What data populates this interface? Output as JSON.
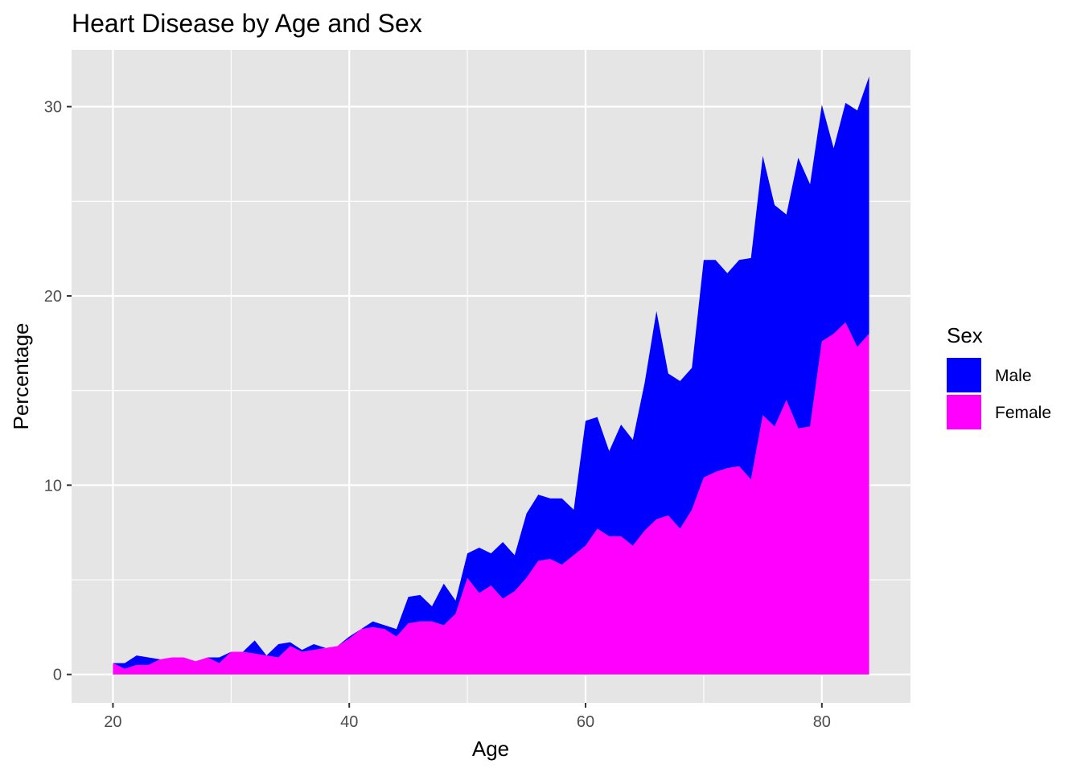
{
  "chart_data": {
    "type": "area",
    "stacked": true,
    "title": "Heart Disease by Age and Sex",
    "xlabel": "Age",
    "ylabel": "Percentage",
    "xlim": [
      16.5,
      87.5
    ],
    "ylim": [
      -1.5,
      33
    ],
    "x_ticks": [
      20,
      40,
      60,
      80
    ],
    "y_ticks": [
      0,
      10,
      20,
      30
    ],
    "grid": true,
    "panel_background": "#e5e5e5",
    "legend": {
      "title": "Sex",
      "position": "right",
      "entries": [
        {
          "label": "Male",
          "color": "#0000ff"
        },
        {
          "label": "Female",
          "color": "#ff00ff"
        }
      ]
    },
    "x": [
      20,
      21,
      22,
      23,
      24,
      25,
      26,
      27,
      28,
      29,
      30,
      31,
      32,
      33,
      34,
      35,
      36,
      37,
      38,
      39,
      40,
      41,
      42,
      43,
      44,
      45,
      46,
      47,
      48,
      49,
      50,
      51,
      52,
      53,
      54,
      55,
      56,
      57,
      58,
      59,
      60,
      61,
      62,
      63,
      64,
      65,
      66,
      67,
      68,
      69,
      70,
      71,
      72,
      73,
      74,
      75,
      76,
      77,
      78,
      79,
      80,
      81,
      82,
      83,
      84
    ],
    "series": [
      {
        "name": "Female",
        "color": "#ff00ff",
        "values": [
          0.6,
          0.3,
          0.5,
          0.5,
          0.8,
          0.9,
          0.9,
          0.7,
          0.9,
          0.6,
          1.2,
          1.2,
          1.1,
          1.0,
          0.9,
          1.5,
          1.2,
          1.3,
          1.4,
          1.5,
          1.9,
          2.4,
          2.5,
          2.4,
          2.0,
          2.7,
          2.8,
          2.8,
          2.6,
          3.2,
          5.1,
          4.3,
          4.7,
          4.0,
          4.4,
          5.1,
          6.0,
          6.1,
          5.8,
          6.3,
          6.8,
          7.7,
          7.3,
          7.3,
          6.8,
          7.6,
          8.2,
          8.4,
          7.7,
          8.7,
          10.4,
          10.7,
          10.9,
          11.0,
          10.3,
          13.7,
          13.1,
          14.5,
          13.0,
          13.1,
          17.6,
          18.0,
          18.6,
          17.3,
          18.0
        ]
      },
      {
        "name": "Male",
        "color": "#0000ff",
        "values": [
          0.0,
          0.3,
          0.5,
          0.4,
          0.0,
          0.0,
          0.0,
          0.0,
          0.0,
          0.3,
          0.0,
          0.0,
          0.7,
          0.0,
          0.7,
          0.2,
          0.1,
          0.3,
          0.0,
          0.0,
          0.1,
          0.0,
          0.3,
          0.2,
          0.4,
          1.4,
          1.4,
          0.8,
          2.2,
          0.7,
          1.3,
          2.4,
          1.7,
          3.0,
          1.9,
          3.4,
          3.5,
          3.2,
          3.5,
          2.4,
          6.6,
          5.9,
          4.5,
          5.9,
          5.6,
          7.8,
          11.0,
          7.5,
          7.8,
          7.5,
          11.5,
          11.2,
          10.3,
          10.9,
          11.7,
          13.7,
          11.7,
          9.8,
          14.3,
          12.8,
          12.5,
          9.8,
          11.6,
          12.5,
          13.6
        ]
      }
    ]
  }
}
